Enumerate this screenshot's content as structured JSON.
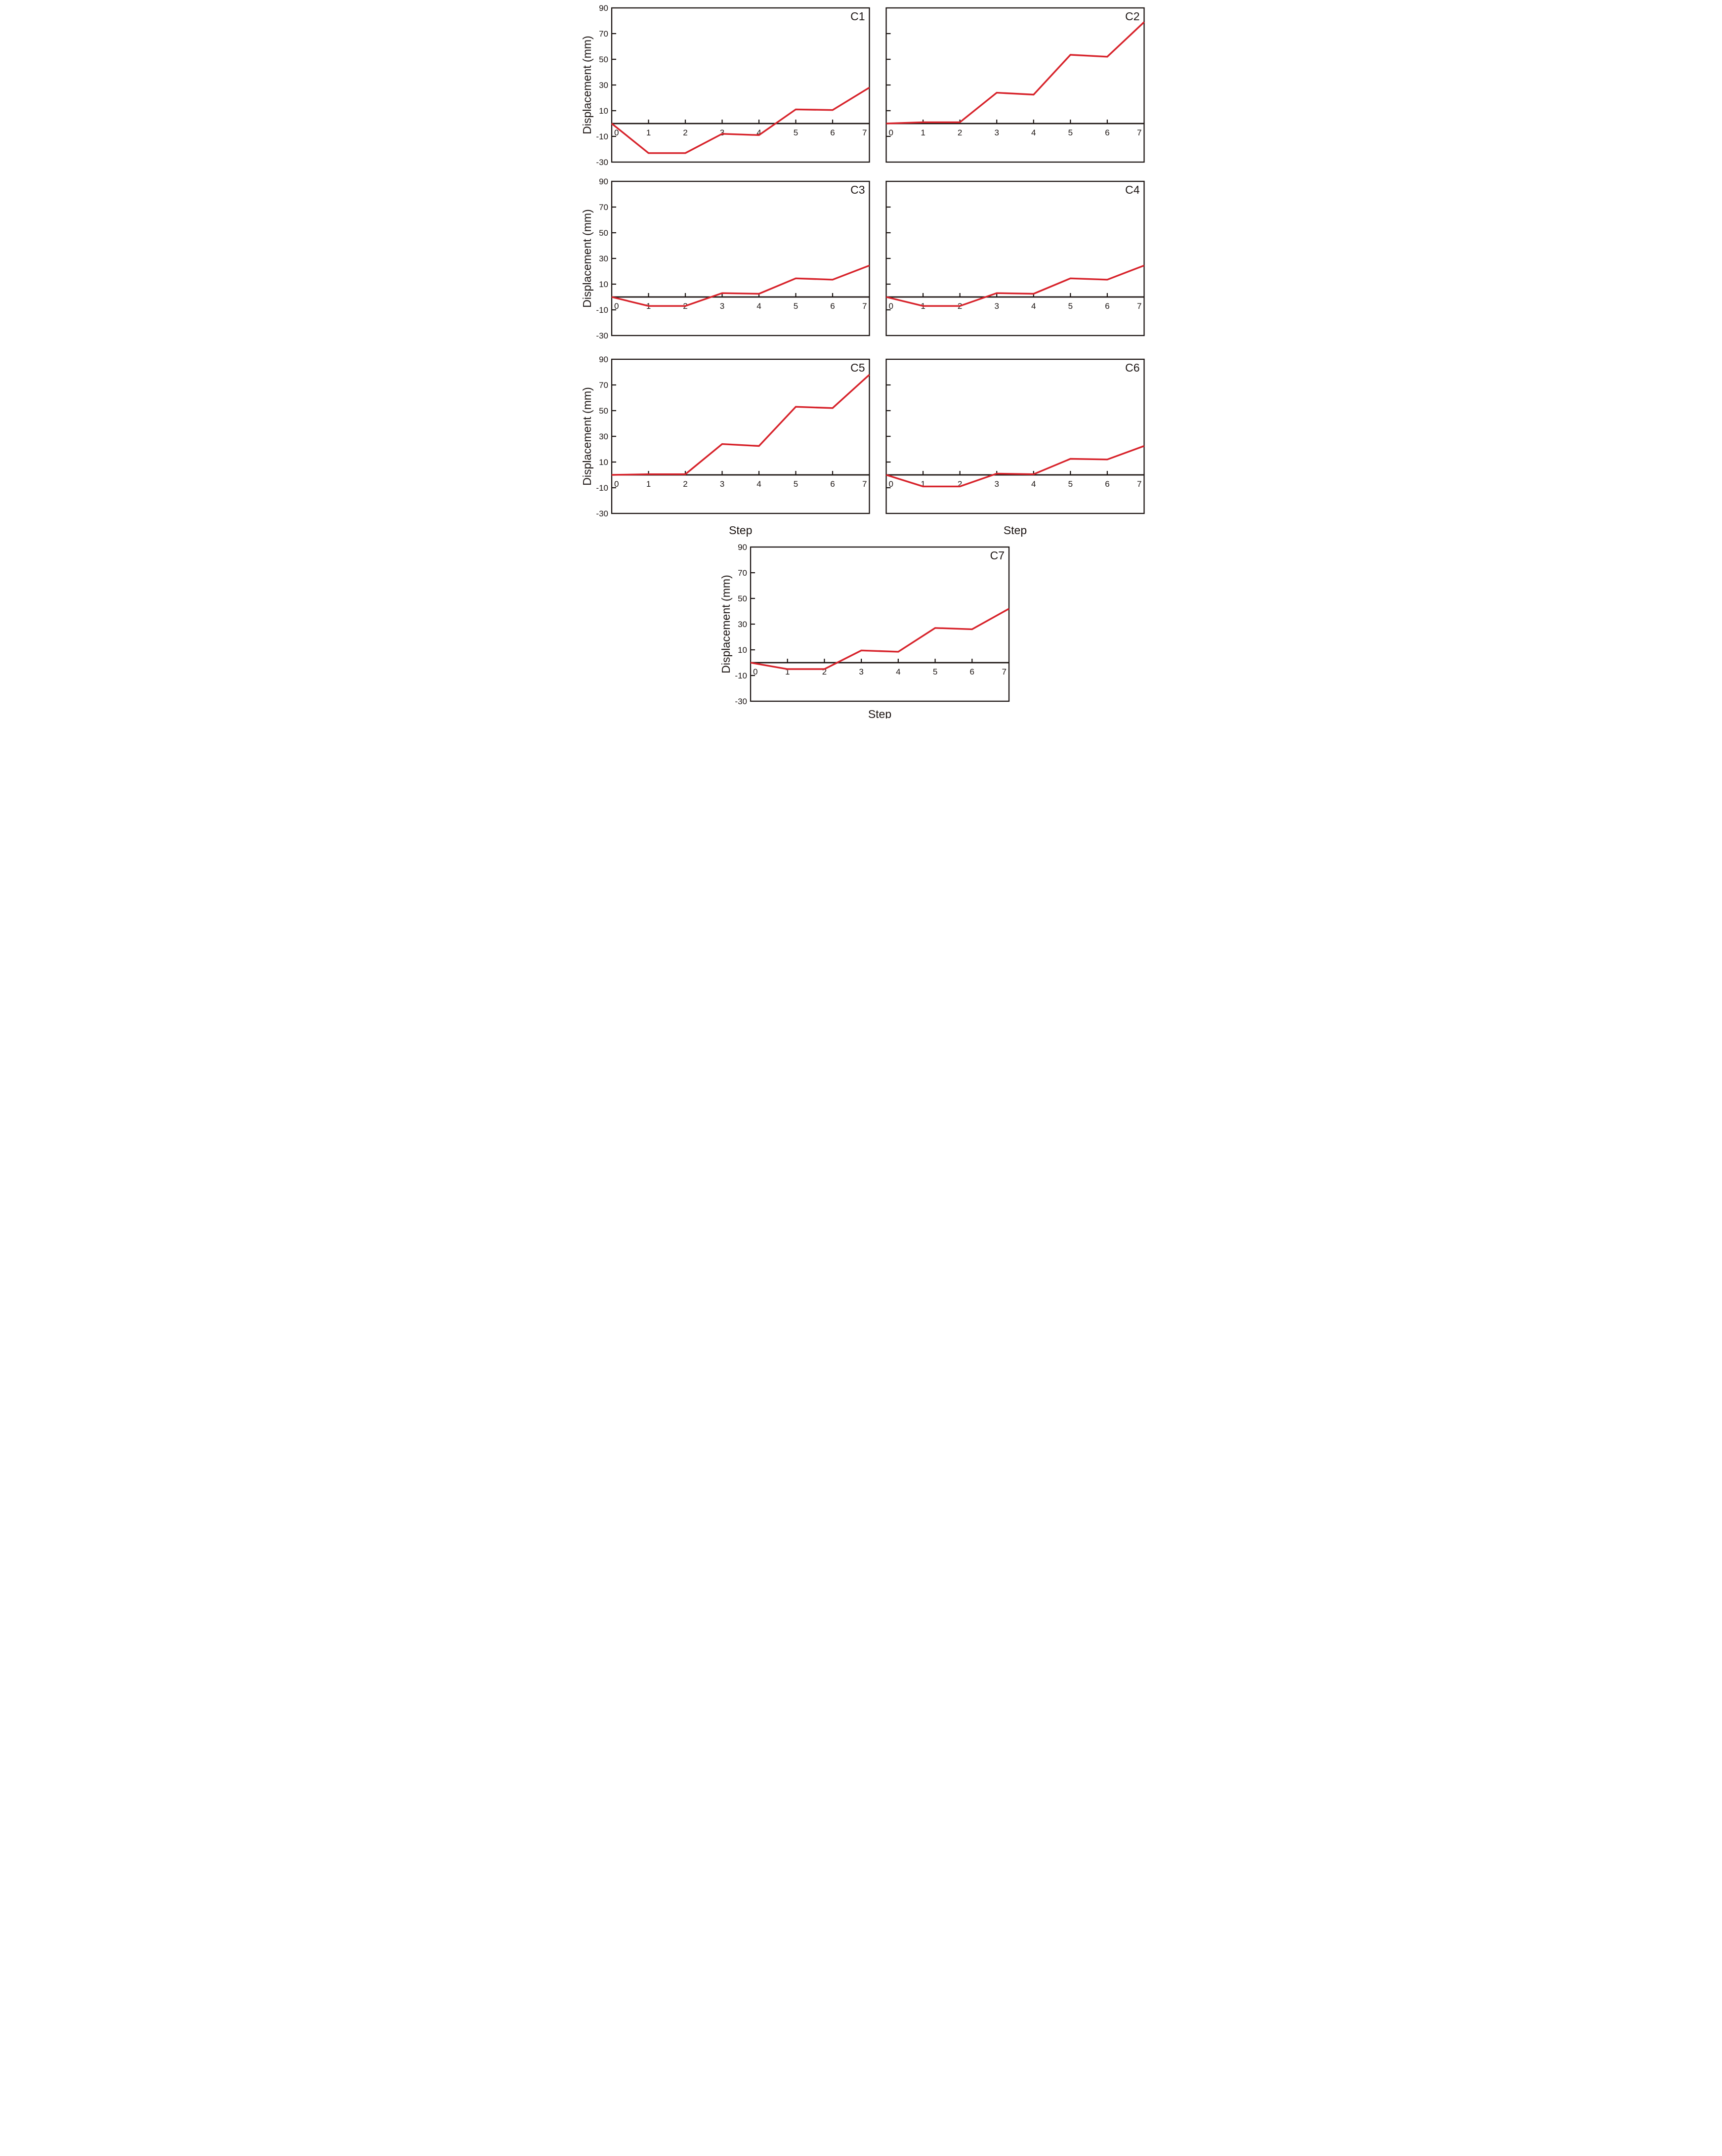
{
  "figure": {
    "background": "#ffffff",
    "line_color": "#d7232b",
    "axis_color": "#1b1412",
    "ylabel": "Displacement (mm)",
    "xlabel": "Step",
    "ylim": [
      -30,
      90
    ],
    "xlim": [
      0,
      7
    ],
    "y_ticks": [
      "90",
      "70",
      "50",
      "30",
      "10",
      "-10",
      "-30"
    ],
    "x_ticks": [
      "0",
      "1",
      "2",
      "3",
      "4",
      "5",
      "6",
      "7"
    ]
  },
  "chart_data": [
    {
      "type": "line",
      "label": "C1",
      "ylabel": "Displacement (mm)",
      "xlabel": "",
      "xlim": [
        0,
        7
      ],
      "ylim": [
        -30,
        90
      ],
      "x": [
        0,
        1,
        2,
        3,
        4,
        5,
        6,
        7
      ],
      "values": [
        0,
        -23,
        -23,
        -8,
        -9,
        11,
        10.5,
        28
      ]
    },
    {
      "type": "line",
      "label": "C2",
      "ylabel": "",
      "xlabel": "",
      "xlim": [
        0,
        7
      ],
      "ylim": [
        -30,
        90
      ],
      "x": [
        0,
        1,
        2,
        3,
        4,
        5,
        6,
        7
      ],
      "values": [
        0,
        1,
        1,
        24,
        22.5,
        53.5,
        52,
        79
      ]
    },
    {
      "type": "line",
      "label": "C3",
      "ylabel": "Displacement (mm)",
      "xlabel": "",
      "xlim": [
        0,
        7
      ],
      "ylim": [
        -30,
        90
      ],
      "x": [
        0,
        1,
        2,
        3,
        4,
        5,
        6,
        7
      ],
      "values": [
        0,
        -7,
        -7,
        3,
        2.5,
        14.5,
        13.5,
        24.5
      ]
    },
    {
      "type": "line",
      "label": "C4",
      "ylabel": "",
      "xlabel": "",
      "xlim": [
        0,
        7
      ],
      "ylim": [
        -30,
        90
      ],
      "x": [
        0,
        1,
        2,
        3,
        4,
        5,
        6,
        7
      ],
      "values": [
        0,
        -7,
        -7,
        3,
        2.5,
        14.5,
        13.5,
        24.5
      ]
    },
    {
      "type": "line",
      "label": "C5",
      "ylabel": "Displacement (mm)",
      "xlabel": "Step",
      "xlim": [
        0,
        7
      ],
      "ylim": [
        -30,
        90
      ],
      "x": [
        0,
        1,
        2,
        3,
        4,
        5,
        6,
        7
      ],
      "values": [
        0,
        0.5,
        0.5,
        24,
        22.5,
        53,
        52,
        78
      ]
    },
    {
      "type": "line",
      "label": "C6",
      "ylabel": "",
      "xlabel": "Step",
      "xlim": [
        0,
        7
      ],
      "ylim": [
        -30,
        90
      ],
      "x": [
        0,
        1,
        2,
        3,
        4,
        5,
        6,
        7
      ],
      "values": [
        0,
        -9,
        -9,
        1,
        0.5,
        12.5,
        12,
        22.5
      ]
    },
    {
      "type": "line",
      "label": "C7",
      "ylabel": "Displacement (mm)",
      "xlabel": "Step",
      "xlim": [
        0,
        7
      ],
      "ylim": [
        -30,
        90
      ],
      "x": [
        0,
        1,
        2,
        3,
        4,
        5,
        6,
        7
      ],
      "values": [
        0,
        -5,
        -5,
        9.5,
        8.5,
        27,
        26,
        42
      ]
    }
  ]
}
